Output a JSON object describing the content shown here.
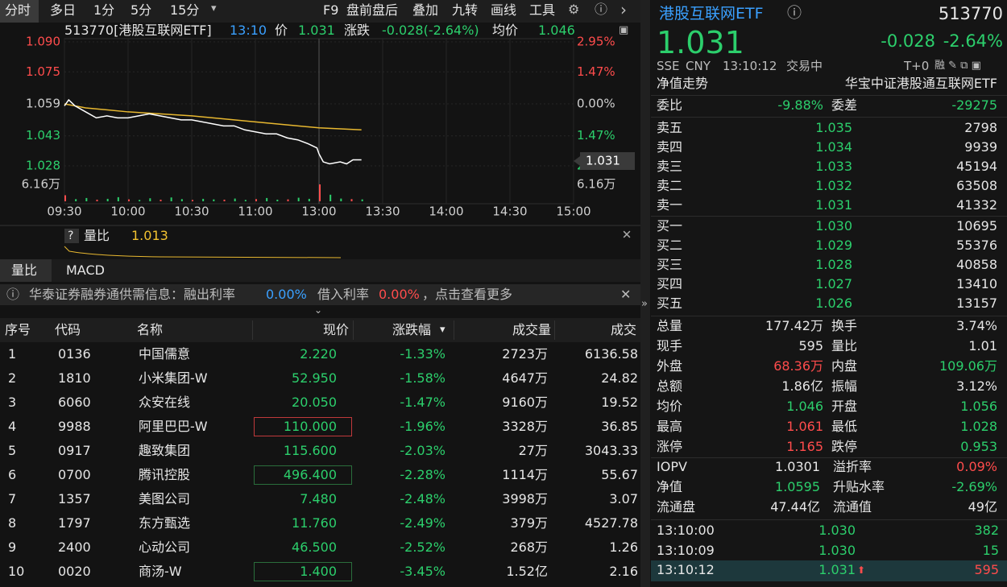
{
  "toolbar": {
    "tabs": [
      "分时",
      "多日",
      "1分",
      "5分",
      "15分"
    ],
    "tools": [
      "F9",
      "盘前盘后",
      "叠加",
      "九转",
      "画线",
      "工具"
    ]
  },
  "chart_header": {
    "code": "513770[港股互联网ETF]",
    "time": "13:10",
    "price_label": "价",
    "price": "1.031",
    "change_label": "涨跌",
    "change": "-0.028(-2.64%)",
    "avg_label": "均价",
    "avg": "1.046"
  },
  "chart": {
    "type": "line",
    "xlim": [
      0,
      240
    ],
    "ylim": [
      1.028,
      1.09
    ],
    "yticks": [
      {
        "value": 1.09,
        "label": "1.090"
      },
      {
        "value": 1.075,
        "label": "1.075"
      },
      1.059,
      1.043,
      1.028
    ],
    "pct_labels": [
      "2.95%",
      "1.47%",
      "0.00%",
      "1.47%",
      "2.95%"
    ],
    "xticks": [
      {
        "value": 0,
        "label": "09:30"
      },
      {
        "value": 30,
        "label": "10:00"
      },
      {
        "value": 60,
        "label": "10:30"
      },
      {
        "value": 90,
        "label": "11:00"
      },
      {
        "value": 120,
        "label": "13:00"
      },
      {
        "value": 150,
        "label": "13:30"
      },
      {
        "value": 180,
        "label": "14:00"
      },
      {
        "value": 210,
        "label": "14:30"
      },
      {
        "value": 240,
        "label": "15:00"
      }
    ],
    "vol_max_label": "6.16万",
    "vol_ylim": [
      0,
      6.16
    ],
    "x": [
      0,
      2,
      5,
      10,
      15,
      20,
      25,
      30,
      35,
      40,
      45,
      50,
      55,
      60,
      65,
      70,
      75,
      80,
      85,
      90,
      95,
      100,
      105,
      110,
      115,
      119,
      120,
      122,
      125,
      130,
      133,
      136,
      140
    ],
    "price": [
      1.058,
      1.061,
      1.058,
      1.055,
      1.052,
      1.053,
      1.052,
      1.052,
      1.053,
      1.054,
      1.053,
      1.052,
      1.051,
      1.051,
      1.05,
      1.049,
      1.048,
      1.048,
      1.046,
      1.045,
      1.044,
      1.044,
      1.042,
      1.041,
      1.039,
      1.037,
      1.034,
      1.03,
      1.029,
      1.03,
      1.029,
      1.031,
      1.031
    ],
    "avg_x": [
      0,
      10,
      30,
      60,
      90,
      120,
      140
    ],
    "avg": [
      1.059,
      1.057,
      1.055,
      1.053,
      1.05,
      1.047,
      1.046
    ],
    "vol_x": [
      0,
      5,
      10,
      15,
      20,
      25,
      30,
      35,
      40,
      45,
      50,
      55,
      60,
      65,
      70,
      75,
      80,
      85,
      90,
      95,
      100,
      105,
      110,
      115,
      120,
      125,
      130,
      135,
      140
    ],
    "vol": [
      2.2,
      0.8,
      1.2,
      0.6,
      0.9,
      1.5,
      0.7,
      0.5,
      1.1,
      0.6,
      1.4,
      0.8,
      0.5,
      0.9,
      0.7,
      0.6,
      1.0,
      0.5,
      0.8,
      1.2,
      0.6,
      0.7,
      1.3,
      0.9,
      6.16,
      2.4,
      1.0,
      0.8,
      0.7
    ],
    "last_label": "1.031"
  },
  "indicator": {
    "label": "量比",
    "value": "1.013"
  },
  "tabs": [
    "量比",
    "MACD"
  ],
  "notice": {
    "text": "华泰证券融券通供需信息：融出利率",
    "rate1": "0.00%",
    "text2": "借入利率",
    "rate2": "0.00%",
    "text3": "，点击查看更多"
  },
  "table": {
    "headers": [
      "序号",
      "代码",
      "名称",
      "现价",
      "涨跌幅",
      "成交量",
      "成交"
    ],
    "rows": [
      [
        "1",
        "0136",
        "中国儒意",
        "2.220",
        "-1.33%",
        "2723万",
        "6136.58"
      ],
      [
        "2",
        "1810",
        "小米集团-W",
        "52.950",
        "-1.58%",
        "4647万",
        "24.82"
      ],
      [
        "3",
        "6060",
        "众安在线",
        "20.050",
        "-1.47%",
        "9160万",
        "19.52"
      ],
      [
        "4",
        "9988",
        "阿里巴巴-W",
        "110.000",
        "-1.96%",
        "3328万",
        "36.85"
      ],
      [
        "5",
        "0917",
        "趣致集团",
        "115.600",
        "-2.03%",
        "27万",
        "3043.33"
      ],
      [
        "6",
        "0700",
        "腾讯控股",
        "496.400",
        "-2.28%",
        "1114万",
        "55.67"
      ],
      [
        "7",
        "1357",
        "美图公司",
        "7.480",
        "-2.48%",
        "3998万",
        "3.07"
      ],
      [
        "8",
        "1797",
        "东方甄选",
        "11.760",
        "-2.49%",
        "379万",
        "4527.78"
      ],
      [
        "9",
        "2400",
        "心动公司",
        "46.500",
        "-2.52%",
        "268万",
        "1.26"
      ],
      [
        "10",
        "0020",
        "商汤-W",
        "1.400",
        "-3.45%",
        "1.52亿",
        "2.16"
      ]
    ]
  },
  "quote": {
    "name": "港股互联网ETF",
    "code": "513770",
    "price": "1.031",
    "change": "-0.028",
    "pct": "-2.64%",
    "exchange": "SSE",
    "currency": "CNY",
    "time": "13:10:12",
    "status": "交易中",
    "t0": "T+0",
    "nav_label": "净值走势",
    "fund": "华宝中证港股通互联网ETF",
    "ratio": [
      "委比",
      "-9.88%",
      "委差",
      "-29275"
    ],
    "book": [
      [
        "卖五",
        "1.035",
        "2798"
      ],
      [
        "卖四",
        "1.034",
        "9939"
      ],
      [
        "卖三",
        "1.033",
        "45194"
      ],
      [
        "卖二",
        "1.032",
        "63508"
      ],
      [
        "卖一",
        "1.031",
        "41332"
      ],
      [
        "买一",
        "1.030",
        "10695"
      ],
      [
        "买二",
        "1.029",
        "55376"
      ],
      [
        "买三",
        "1.028",
        "40858"
      ],
      [
        "买四",
        "1.027",
        "13410"
      ],
      [
        "买五",
        "1.026",
        "13157"
      ]
    ],
    "stats": [
      [
        "总量",
        "177.42万",
        "换手",
        "3.74%"
      ],
      [
        "现手",
        "595",
        "量比",
        "1.01"
      ],
      [
        "外盘",
        "68.36万",
        "内盘",
        "109.06万"
      ],
      [
        "总额",
        "1.86亿",
        "振幅",
        "3.12%"
      ],
      [
        "均价",
        "1.046",
        "开盘",
        "1.056"
      ],
      [
        "最高",
        "1.061",
        "最低",
        "1.028"
      ],
      [
        "涨停",
        "1.165",
        "跌停",
        "0.953"
      ]
    ],
    "nav": [
      [
        "IOPV",
        "1.0301",
        "溢折率",
        "0.09%"
      ],
      [
        "净值",
        "1.0595",
        "升贴水率",
        "-2.69%"
      ],
      [
        "流通盘",
        "47.44亿",
        "流通值",
        "49亿"
      ]
    ],
    "ticks": [
      [
        "13:10:00",
        "1.030",
        "382"
      ],
      [
        "13:10:09",
        "1.030",
        "15"
      ],
      [
        "13:10:12",
        "1.031",
        "595"
      ]
    ]
  }
}
